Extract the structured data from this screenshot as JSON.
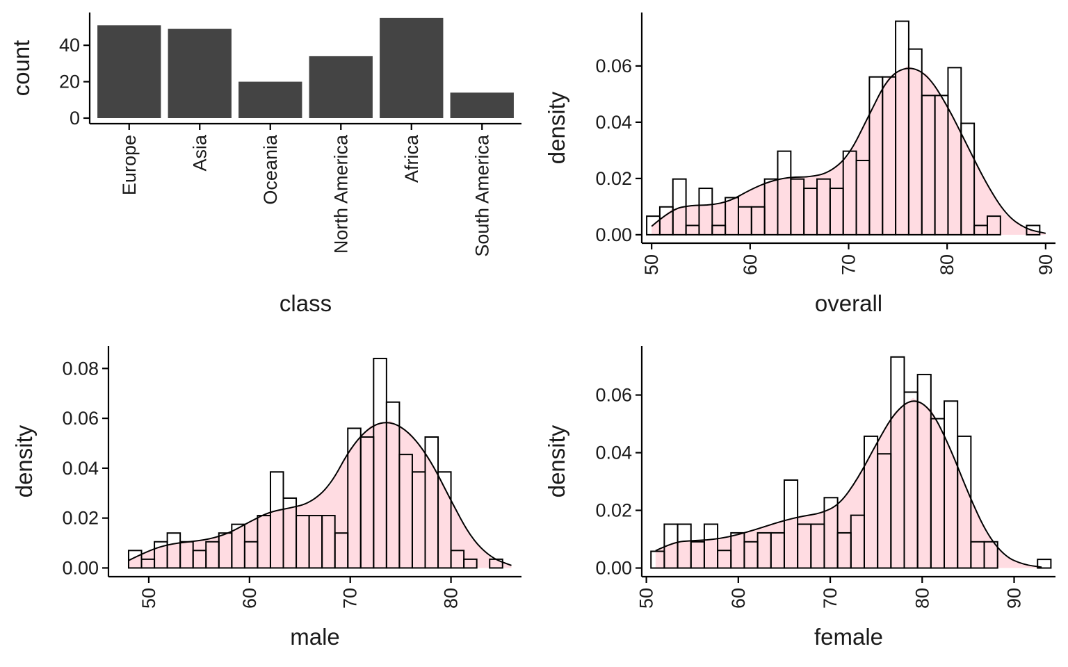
{
  "chart_data": [
    {
      "id": "class",
      "type": "bar",
      "xlabel": "class",
      "ylabel": "count",
      "categories": [
        "Europe",
        "Asia",
        "Oceania",
        "North America",
        "Africa",
        "South America"
      ],
      "values": [
        51,
        49,
        20,
        34,
        55,
        14
      ],
      "ylim": [
        0,
        58
      ],
      "yticks": [
        0,
        20,
        40
      ],
      "bar_color": "#444444",
      "grid": false
    },
    {
      "id": "overall",
      "type": "histogram",
      "xlabel": "overall",
      "ylabel": "density",
      "bin_start": 49.5,
      "bin_width": 1.33,
      "hist": [
        0.0066,
        0.0099,
        0.0198,
        0.0033,
        0.0165,
        0.0033,
        0.0132,
        0.0099,
        0.0099,
        0.0198,
        0.0297,
        0.0198,
        0.0165,
        0.0198,
        0.0165,
        0.0297,
        0.0264,
        0.0561,
        0.0561,
        0.0759,
        0.066,
        0.0495,
        0.0495,
        0.0594,
        0.0396,
        0.0033,
        0.0066,
        0.0,
        0.0,
        0.0033
      ],
      "density_x": [
        50,
        52,
        54,
        56,
        58,
        60,
        62,
        64,
        66,
        68,
        70,
        72,
        74,
        76,
        78,
        80,
        82,
        84,
        86,
        88,
        90
      ],
      "density_y": [
        0.003,
        0.009,
        0.0105,
        0.0105,
        0.012,
        0.016,
        0.019,
        0.0205,
        0.0205,
        0.022,
        0.028,
        0.042,
        0.056,
        0.06,
        0.057,
        0.046,
        0.032,
        0.018,
        0.007,
        0.002,
        0.0005
      ],
      "xlim": [
        49,
        91
      ],
      "ylim": [
        -0.003,
        0.079
      ],
      "xticks": [
        50,
        60,
        70,
        80,
        90
      ],
      "yticks": [
        0.0,
        0.02,
        0.04,
        0.06
      ],
      "fill_color": "#ffc0cb",
      "grid": false
    },
    {
      "id": "male",
      "type": "histogram",
      "xlabel": "male",
      "ylabel": "density",
      "bin_start": 48,
      "bin_width": 1.28,
      "hist": [
        0.007,
        0.0035,
        0.0105,
        0.014,
        0.0105,
        0.007,
        0.0105,
        0.014,
        0.0175,
        0.0105,
        0.021,
        0.0385,
        0.028,
        0.021,
        0.021,
        0.021,
        0.014,
        0.056,
        0.0525,
        0.084,
        0.0665,
        0.0455,
        0.0385,
        0.0525,
        0.0385,
        0.007,
        0.0035,
        0.0,
        0.0035
      ],
      "density_x": [
        48,
        50,
        52,
        54,
        56,
        58,
        60,
        62,
        64,
        66,
        68,
        70,
        72,
        74,
        76,
        78,
        80,
        82,
        84,
        86
      ],
      "density_y": [
        0.003,
        0.007,
        0.0095,
        0.0105,
        0.0115,
        0.014,
        0.0185,
        0.0225,
        0.024,
        0.026,
        0.033,
        0.048,
        0.057,
        0.059,
        0.054,
        0.043,
        0.027,
        0.012,
        0.004,
        0.001
      ],
      "xlim": [
        46,
        87
      ],
      "ylim": [
        -0.0035,
        0.089
      ],
      "xticks": [
        50,
        60,
        70,
        80
      ],
      "yticks": [
        0.0,
        0.02,
        0.04,
        0.06,
        0.08
      ],
      "fill_color": "#ffc0cb",
      "grid": false
    },
    {
      "id": "female",
      "type": "histogram",
      "xlabel": "female",
      "ylabel": "density",
      "bin_start": 50.5,
      "bin_width": 1.45,
      "hist": [
        0.0058,
        0.0152,
        0.0152,
        0.0091,
        0.0152,
        0.0061,
        0.0122,
        0.0091,
        0.0122,
        0.0122,
        0.0305,
        0.0152,
        0.0152,
        0.0244,
        0.0122,
        0.0183,
        0.0457,
        0.0396,
        0.0732,
        0.061,
        0.0671,
        0.0518,
        0.0579,
        0.0457,
        0.0091,
        0.0091,
        0.0,
        0.0,
        0.0,
        0.003
      ],
      "density_x": [
        51,
        53,
        55,
        57,
        59,
        61,
        63,
        65,
        67,
        69,
        71,
        73,
        75,
        77,
        79,
        81,
        83,
        85,
        87,
        89,
        91,
        93
      ],
      "density_y": [
        0.006,
        0.009,
        0.0095,
        0.0098,
        0.0108,
        0.0125,
        0.0145,
        0.0165,
        0.018,
        0.019,
        0.022,
        0.031,
        0.043,
        0.054,
        0.059,
        0.055,
        0.042,
        0.026,
        0.012,
        0.004,
        0.0012,
        0.0003
      ],
      "xlim": [
        49.5,
        94.5
      ],
      "ylim": [
        -0.003,
        0.077
      ],
      "xticks": [
        50,
        60,
        70,
        80,
        90
      ],
      "yticks": [
        0.0,
        0.02,
        0.04,
        0.06
      ],
      "fill_color": "#ffc0cb",
      "grid": false
    }
  ]
}
